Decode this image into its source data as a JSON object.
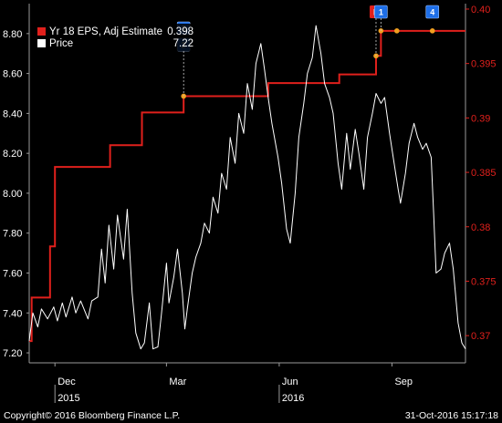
{
  "chart_data": {
    "type": "line",
    "title": "",
    "x_ticks": [
      {
        "date": "2015-12-01",
        "label": "Dec",
        "year": "2015"
      },
      {
        "date": "2016-03-01",
        "label": "Mar",
        "year": ""
      },
      {
        "date": "2016-06-01",
        "label": "Jun",
        "year": "2016"
      },
      {
        "date": "2016-09-01",
        "label": "Sep",
        "year": ""
      }
    ],
    "x_range": [
      "2015-11-10",
      "2016-10-31"
    ],
    "left_axis": {
      "range": [
        7.15,
        8.95
      ],
      "ticks": [
        "7.20",
        "7.40",
        "7.60",
        "7.80",
        "8.00",
        "8.20",
        "8.40",
        "8.60",
        "8.80"
      ]
    },
    "right_axis": {
      "range": [
        0.3675,
        0.4005
      ],
      "ticks": [
        "0.37",
        "0.375",
        "0.38",
        "0.385",
        "0.39",
        "0.395",
        "0.40"
      ]
    },
    "legend": [
      {
        "label": "Yr 18 EPS, Adj Estimate",
        "value": "0.398",
        "color": "#e0201c"
      },
      {
        "label": "Price",
        "value": "7.22",
        "color": "#ffffff"
      }
    ],
    "series": [
      {
        "name": "Yr 18 EPS, Adj Estimate",
        "axis": "right",
        "color": "#e0201c",
        "step": true,
        "points": [
          [
            "2015-11-10",
            0.3695
          ],
          [
            "2015-11-12",
            0.3735
          ],
          [
            "2015-11-27",
            0.3782
          ],
          [
            "2015-12-01",
            0.3855
          ],
          [
            "2016-01-15",
            0.3875
          ],
          [
            "2016-02-10",
            0.3905
          ],
          [
            "2016-03-15",
            0.392
          ],
          [
            "2016-05-23",
            0.3932
          ],
          [
            "2016-07-20",
            0.394
          ],
          [
            "2016-08-19",
            0.3957
          ],
          [
            "2016-08-23",
            0.398
          ],
          [
            "2016-10-31",
            0.398
          ]
        ],
        "revision_points": [
          [
            "2016-03-15",
            0.392
          ],
          [
            "2016-08-19",
            0.3957
          ],
          [
            "2016-08-23",
            0.398
          ],
          [
            "2016-09-05",
            0.398
          ],
          [
            "2016-10-04",
            0.398
          ]
        ]
      },
      {
        "name": "Price",
        "axis": "left",
        "color": "#ffffff",
        "step": false,
        "points": [
          [
            "2015-11-10",
            7.26
          ],
          [
            "2015-11-13",
            7.4
          ],
          [
            "2015-11-17",
            7.33
          ],
          [
            "2015-11-20",
            7.42
          ],
          [
            "2015-11-25",
            7.37
          ],
          [
            "2015-11-30",
            7.43
          ],
          [
            "2015-12-03",
            7.36
          ],
          [
            "2015-12-07",
            7.45
          ],
          [
            "2015-12-10",
            7.38
          ],
          [
            "2015-12-15",
            7.48
          ],
          [
            "2015-12-18",
            7.4
          ],
          [
            "2015-12-22",
            7.46
          ],
          [
            "2015-12-28",
            7.37
          ],
          [
            "2015-12-31",
            7.46
          ],
          [
            "2016-01-05",
            7.48
          ],
          [
            "2016-01-08",
            7.72
          ],
          [
            "2016-01-11",
            7.55
          ],
          [
            "2016-01-14",
            7.84
          ],
          [
            "2016-01-18",
            7.62
          ],
          [
            "2016-01-21",
            7.89
          ],
          [
            "2016-01-26",
            7.67
          ],
          [
            "2016-01-29",
            7.92
          ],
          [
            "2016-02-02",
            7.5
          ],
          [
            "2016-02-05",
            7.3
          ],
          [
            "2016-02-09",
            7.22
          ],
          [
            "2016-02-12",
            7.25
          ],
          [
            "2016-02-16",
            7.45
          ],
          [
            "2016-02-19",
            7.22
          ],
          [
            "2016-02-23",
            7.23
          ],
          [
            "2016-02-26",
            7.4
          ],
          [
            "2016-03-01",
            7.65
          ],
          [
            "2016-03-03",
            7.45
          ],
          [
            "2016-03-07",
            7.58
          ],
          [
            "2016-03-10",
            7.72
          ],
          [
            "2016-03-14",
            7.5
          ],
          [
            "2016-03-16",
            7.32
          ],
          [
            "2016-03-18",
            7.42
          ],
          [
            "2016-03-22",
            7.6
          ],
          [
            "2016-03-25",
            7.68
          ],
          [
            "2016-03-29",
            7.75
          ],
          [
            "2016-04-01",
            7.85
          ],
          [
            "2016-04-05",
            7.8
          ],
          [
            "2016-04-08",
            7.98
          ],
          [
            "2016-04-12",
            7.9
          ],
          [
            "2016-04-15",
            8.1
          ],
          [
            "2016-04-19",
            8.02
          ],
          [
            "2016-04-22",
            8.28
          ],
          [
            "2016-04-26",
            8.15
          ],
          [
            "2016-04-29",
            8.4
          ],
          [
            "2016-05-03",
            8.3
          ],
          [
            "2016-05-06",
            8.55
          ],
          [
            "2016-05-10",
            8.42
          ],
          [
            "2016-05-13",
            8.65
          ],
          [
            "2016-05-17",
            8.75
          ],
          [
            "2016-05-20",
            8.62
          ],
          [
            "2016-05-23",
            8.48
          ],
          [
            "2016-05-26",
            8.35
          ],
          [
            "2016-05-31",
            8.18
          ],
          [
            "2016-06-03",
            8.05
          ],
          [
            "2016-06-07",
            7.82
          ],
          [
            "2016-06-10",
            7.75
          ],
          [
            "2016-06-14",
            8.0
          ],
          [
            "2016-06-17",
            8.28
          ],
          [
            "2016-06-21",
            8.45
          ],
          [
            "2016-06-24",
            8.6
          ],
          [
            "2016-06-28",
            8.68
          ],
          [
            "2016-07-01",
            8.84
          ],
          [
            "2016-07-05",
            8.7
          ],
          [
            "2016-07-08",
            8.55
          ],
          [
            "2016-07-12",
            8.48
          ],
          [
            "2016-07-15",
            8.4
          ],
          [
            "2016-07-19",
            8.15
          ],
          [
            "2016-07-22",
            8.02
          ],
          [
            "2016-07-26",
            8.3
          ],
          [
            "2016-07-29",
            8.12
          ],
          [
            "2016-08-02",
            8.32
          ],
          [
            "2016-08-05",
            8.2
          ],
          [
            "2016-08-09",
            8.02
          ],
          [
            "2016-08-12",
            8.28
          ],
          [
            "2016-08-16",
            8.4
          ],
          [
            "2016-08-19",
            8.5
          ],
          [
            "2016-08-23",
            8.45
          ],
          [
            "2016-08-26",
            8.48
          ],
          [
            "2016-08-30",
            8.3
          ],
          [
            "2016-09-02",
            8.18
          ],
          [
            "2016-09-06",
            8.02
          ],
          [
            "2016-09-08",
            7.95
          ],
          [
            "2016-09-12",
            8.1
          ],
          [
            "2016-09-15",
            8.25
          ],
          [
            "2016-09-19",
            8.35
          ],
          [
            "2016-09-22",
            8.28
          ],
          [
            "2016-09-26",
            8.22
          ],
          [
            "2016-09-29",
            8.25
          ],
          [
            "2016-10-03",
            8.18
          ],
          [
            "2016-10-05",
            7.9
          ],
          [
            "2016-10-07",
            7.6
          ],
          [
            "2016-10-11",
            7.62
          ],
          [
            "2016-10-14",
            7.7
          ],
          [
            "2016-10-18",
            7.75
          ],
          [
            "2016-10-21",
            7.62
          ],
          [
            "2016-10-25",
            7.35
          ],
          [
            "2016-10-28",
            7.25
          ],
          [
            "2016-10-31",
            7.22
          ]
        ]
      }
    ],
    "markers": [
      {
        "date": "2016-03-15",
        "label": "2",
        "color": "#1e6fe8",
        "level": 2
      },
      {
        "date": "2016-03-15",
        "label": "3",
        "color": "#1e6fe8",
        "level": 1
      },
      {
        "date": "2016-08-19",
        "label": "E",
        "color": "#e0201c",
        "level": 0
      },
      {
        "date": "2016-08-23",
        "label": "1",
        "color": "#1e6fe8",
        "level": 0
      },
      {
        "date": "2016-10-04",
        "label": "4",
        "color": "#1e6fe8",
        "level": 0
      }
    ],
    "grid": false,
    "legend_position": "top-left"
  },
  "footer": {
    "copyright": "Copyright© 2016 Bloomberg Finance L.P.",
    "timestamp": "31-Oct-2016 15:17:18"
  },
  "colors": {
    "background": "#000000",
    "price_line": "#ffffff",
    "estimate_line": "#e0201c",
    "revision_point": "#f0a020",
    "marker_blue": "#1e6fe8",
    "marker_red": "#e0201c"
  }
}
